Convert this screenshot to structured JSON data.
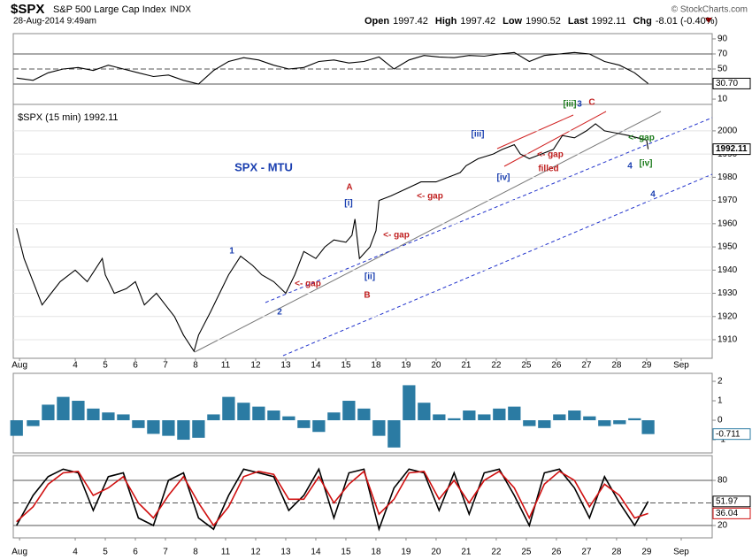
{
  "header": {
    "symbol": "$SPX",
    "name": "S&P 500 Large Cap Index",
    "exchange": "INDX",
    "date": "28-Aug-2014 9:49am",
    "copyright": "© StockCharts.com",
    "quote": [
      {
        "label": "Open",
        "value": "1997.42"
      },
      {
        "label": "High",
        "value": "1997.42"
      },
      {
        "label": "Low",
        "value": "1990.52"
      },
      {
        "label": "Last",
        "value": "1992.11"
      },
      {
        "label": "Chg",
        "value": "-8.01 (-0.40%)"
      }
    ]
  },
  "chart_data": [
    {
      "type": "line",
      "ylim": [
        3,
        97
      ],
      "yticks": [
        10,
        50,
        70,
        90
      ],
      "ref_lines": [
        30,
        50,
        70
      ],
      "current_label": "30.70",
      "xlim": [
        -2.06,
        21.18
      ],
      "x": [
        -1.95,
        -1.4,
        -0.9,
        -0.4,
        0.1,
        0.6,
        1.1,
        1.6,
        2.1,
        2.6,
        3.1,
        3.6,
        4.1,
        4.6,
        5.1,
        5.6,
        6.1,
        6.6,
        7.1,
        7.6,
        8.1,
        8.6,
        9.1,
        9.6,
        10.1,
        10.6,
        11.1,
        11.6,
        12.1,
        12.6,
        13.1,
        13.6,
        14.1,
        14.6,
        15.1,
        15.6,
        16.1,
        16.6,
        17.1,
        17.6,
        18.1,
        18.6,
        19.05
      ],
      "series": [
        {
          "color": "#000000",
          "values": [
            38,
            35,
            45,
            50,
            52,
            48,
            55,
            50,
            45,
            40,
            42,
            35,
            30,
            48,
            60,
            65,
            62,
            55,
            50,
            52,
            60,
            62,
            58,
            60,
            66,
            50,
            62,
            68,
            66,
            65,
            68,
            67,
            70,
            72,
            60,
            68,
            70,
            72,
            70,
            60,
            55,
            45,
            30.7
          ]
        }
      ]
    },
    {
      "type": "line",
      "label": "$SPX (15 min) 1992.11",
      "ylim": [
        1902,
        2011.4
      ],
      "yticks": [
        1910,
        1920,
        1930,
        1940,
        1950,
        1960,
        1970,
        1980,
        1990,
        2000
      ],
      "grid": true,
      "xlim": [
        -2.06,
        21.18
      ],
      "xticks": [
        {
          "value": -1.85,
          "label": "Aug"
        },
        {
          "value": 0,
          "label": "4"
        },
        {
          "value": 1,
          "label": "5"
        },
        {
          "value": 2,
          "label": "6"
        },
        {
          "value": 3,
          "label": "7"
        },
        {
          "value": 4,
          "label": "8"
        },
        {
          "value": 5,
          "label": "11"
        },
        {
          "value": 6,
          "label": "12"
        },
        {
          "value": 7,
          "label": "13"
        },
        {
          "value": 8,
          "label": "14"
        },
        {
          "value": 9,
          "label": "15"
        },
        {
          "value": 10,
          "label": "18"
        },
        {
          "value": 11,
          "label": "19"
        },
        {
          "value": 12,
          "label": "20"
        },
        {
          "value": 13,
          "label": "21"
        },
        {
          "value": 14,
          "label": "22"
        },
        {
          "value": 15,
          "label": "25"
        },
        {
          "value": 16,
          "label": "26"
        },
        {
          "value": 17,
          "label": "27"
        },
        {
          "value": 18,
          "label": "28"
        },
        {
          "value": 19,
          "label": "29"
        },
        {
          "value": 20.15,
          "label": "Sep"
        }
      ],
      "x": [
        -1.95,
        -1.7,
        -1.4,
        -1.1,
        -0.8,
        -0.5,
        0,
        0.4,
        0.9,
        1,
        1.3,
        1.7,
        2,
        2.3,
        2.7,
        3,
        3.3,
        3.6,
        3.95,
        4.1,
        4.5,
        4.8,
        5.1,
        5.5,
        5.9,
        6.2,
        6.6,
        7,
        7.3,
        7.6,
        8,
        8.3,
        8.6,
        9,
        9.2,
        9.3,
        9.45,
        9.8,
        10,
        10.1,
        10.5,
        11,
        11.5,
        12,
        12.4,
        12.8,
        13,
        13.4,
        13.9,
        14.2,
        14.6,
        14.8,
        15.1,
        15.5,
        15.9,
        16.2,
        16.6,
        17,
        17.3,
        17.6,
        18,
        18.4,
        18.7,
        19,
        19.05
      ],
      "series": [
        {
          "color": "#000000",
          "values": [
            1958,
            1945,
            1935,
            1925,
            1930,
            1935,
            1940,
            1935,
            1945,
            1938,
            1930,
            1932,
            1935,
            1925,
            1930,
            1925,
            1920,
            1912,
            1905,
            1912,
            1922,
            1930,
            1938,
            1946,
            1942,
            1938,
            1935,
            1930,
            1938,
            1948,
            1945,
            1950,
            1953,
            1952,
            1955,
            1962,
            1945,
            1950,
            1957,
            1970,
            1972,
            1975,
            1978,
            1978,
            1980,
            1982,
            1985,
            1988,
            1990,
            1992,
            1994,
            1990,
            1988,
            1990,
            1992,
            1998,
            1997,
            2000,
            2003,
            2000,
            1999,
            1998,
            1997,
            1996,
            1992.11
          ]
        }
      ],
      "annotations": [
        "SPX - MTU",
        "A",
        "[i]",
        "1",
        "2",
        "[ii]",
        "B",
        "<- gap",
        "<- gap",
        "<- gap",
        "[iii]",
        "[iv]",
        "<- gap",
        "filled",
        "[iii]",
        "3",
        "C",
        "<- gap",
        "4",
        "[iv]",
        "4"
      ]
    },
    {
      "type": "bar",
      "ylim": [
        -1.68,
        2.41
      ],
      "yticks": [
        -1,
        0,
        1,
        2
      ],
      "color": "#2b7ba3",
      "xlim": [
        -2.06,
        21.18
      ],
      "x": [
        -1.95,
        -1.4,
        -0.9,
        -0.4,
        0.1,
        0.6,
        1.1,
        1.6,
        2.1,
        2.6,
        3.1,
        3.6,
        4.1,
        4.6,
        5.1,
        5.6,
        6.1,
        6.6,
        7.1,
        7.6,
        8.1,
        8.6,
        9.1,
        9.6,
        10.1,
        10.6,
        11.1,
        11.6,
        12.1,
        12.6,
        13.1,
        13.6,
        14.1,
        14.6,
        15.1,
        15.6,
        16.1,
        16.6,
        17.1,
        17.6,
        18.1,
        18.6,
        19.05
      ],
      "values": [
        -0.8,
        -0.3,
        0.8,
        1.2,
        1.0,
        0.6,
        0.4,
        0.3,
        -0.4,
        -0.7,
        -0.8,
        -1.0,
        -0.9,
        0.3,
        1.2,
        0.9,
        0.7,
        0.5,
        0.2,
        -0.4,
        -0.6,
        0.4,
        1.0,
        0.6,
        -0.8,
        -1.4,
        1.8,
        0.9,
        0.3,
        0.1,
        0.5,
        0.3,
        0.6,
        0.7,
        -0.3,
        -0.4,
        0.3,
        0.5,
        0.2,
        -0.3,
        -0.2,
        0.1,
        -0.711
      ]
    },
    {
      "type": "line",
      "ylim": [
        3.5,
        113
      ],
      "yticks": [
        20,
        80
      ],
      "ref_lines": [
        20,
        50,
        80
      ],
      "xlim": [
        -2.06,
        21.18
      ],
      "xticks": [
        {
          "value": -1.85,
          "label": "Aug"
        },
        {
          "value": 0,
          "label": "4"
        },
        {
          "value": 1,
          "label": "5"
        },
        {
          "value": 2,
          "label": "6"
        },
        {
          "value": 3,
          "label": "7"
        },
        {
          "value": 4,
          "label": "8"
        },
        {
          "value": 5,
          "label": "11"
        },
        {
          "value": 6,
          "label": "12"
        },
        {
          "value": 7,
          "label": "13"
        },
        {
          "value": 8,
          "label": "14"
        },
        {
          "value": 9,
          "label": "15"
        },
        {
          "value": 10,
          "label": "18"
        },
        {
          "value": 11,
          "label": "19"
        },
        {
          "value": 12,
          "label": "20"
        },
        {
          "value": 13,
          "label": "21"
        },
        {
          "value": 14,
          "label": "22"
        },
        {
          "value": 15,
          "label": "25"
        },
        {
          "value": 16,
          "label": "26"
        },
        {
          "value": 17,
          "label": "27"
        },
        {
          "value": 18,
          "label": "28"
        },
        {
          "value": 19,
          "label": "29"
        },
        {
          "value": 20.15,
          "label": "Sep"
        }
      ],
      "x": [
        -1.95,
        -1.4,
        -0.9,
        -0.4,
        0.1,
        0.6,
        1.1,
        1.6,
        2.1,
        2.6,
        3.1,
        3.6,
        4.1,
        4.6,
        5.1,
        5.6,
        6.1,
        6.6,
        7.1,
        7.6,
        8.1,
        8.6,
        9.1,
        9.6,
        10.1,
        10.6,
        11.1,
        11.6,
        12.1,
        12.6,
        13.1,
        13.6,
        14.1,
        14.6,
        15.1,
        15.6,
        16.1,
        16.6,
        17.1,
        17.6,
        18.1,
        18.6,
        19.05
      ],
      "series": [
        {
          "color": "#000000",
          "values": [
            20,
            60,
            85,
            95,
            90,
            40,
            85,
            90,
            30,
            20,
            80,
            90,
            30,
            15,
            60,
            95,
            90,
            85,
            40,
            60,
            95,
            30,
            90,
            95,
            15,
            70,
            95,
            90,
            40,
            90,
            35,
            90,
            95,
            60,
            20,
            90,
            95,
            70,
            30,
            85,
            50,
            20,
            51.97
          ]
        },
        {
          "color": "#d01010",
          "values": [
            25,
            45,
            75,
            90,
            92,
            60,
            70,
            85,
            50,
            30,
            60,
            85,
            50,
            20,
            45,
            85,
            92,
            88,
            55,
            55,
            85,
            50,
            75,
            92,
            35,
            55,
            90,
            92,
            55,
            80,
            50,
            80,
            92,
            70,
            30,
            75,
            92,
            80,
            45,
            75,
            60,
            30,
            36.04
          ]
        }
      ]
    }
  ]
}
